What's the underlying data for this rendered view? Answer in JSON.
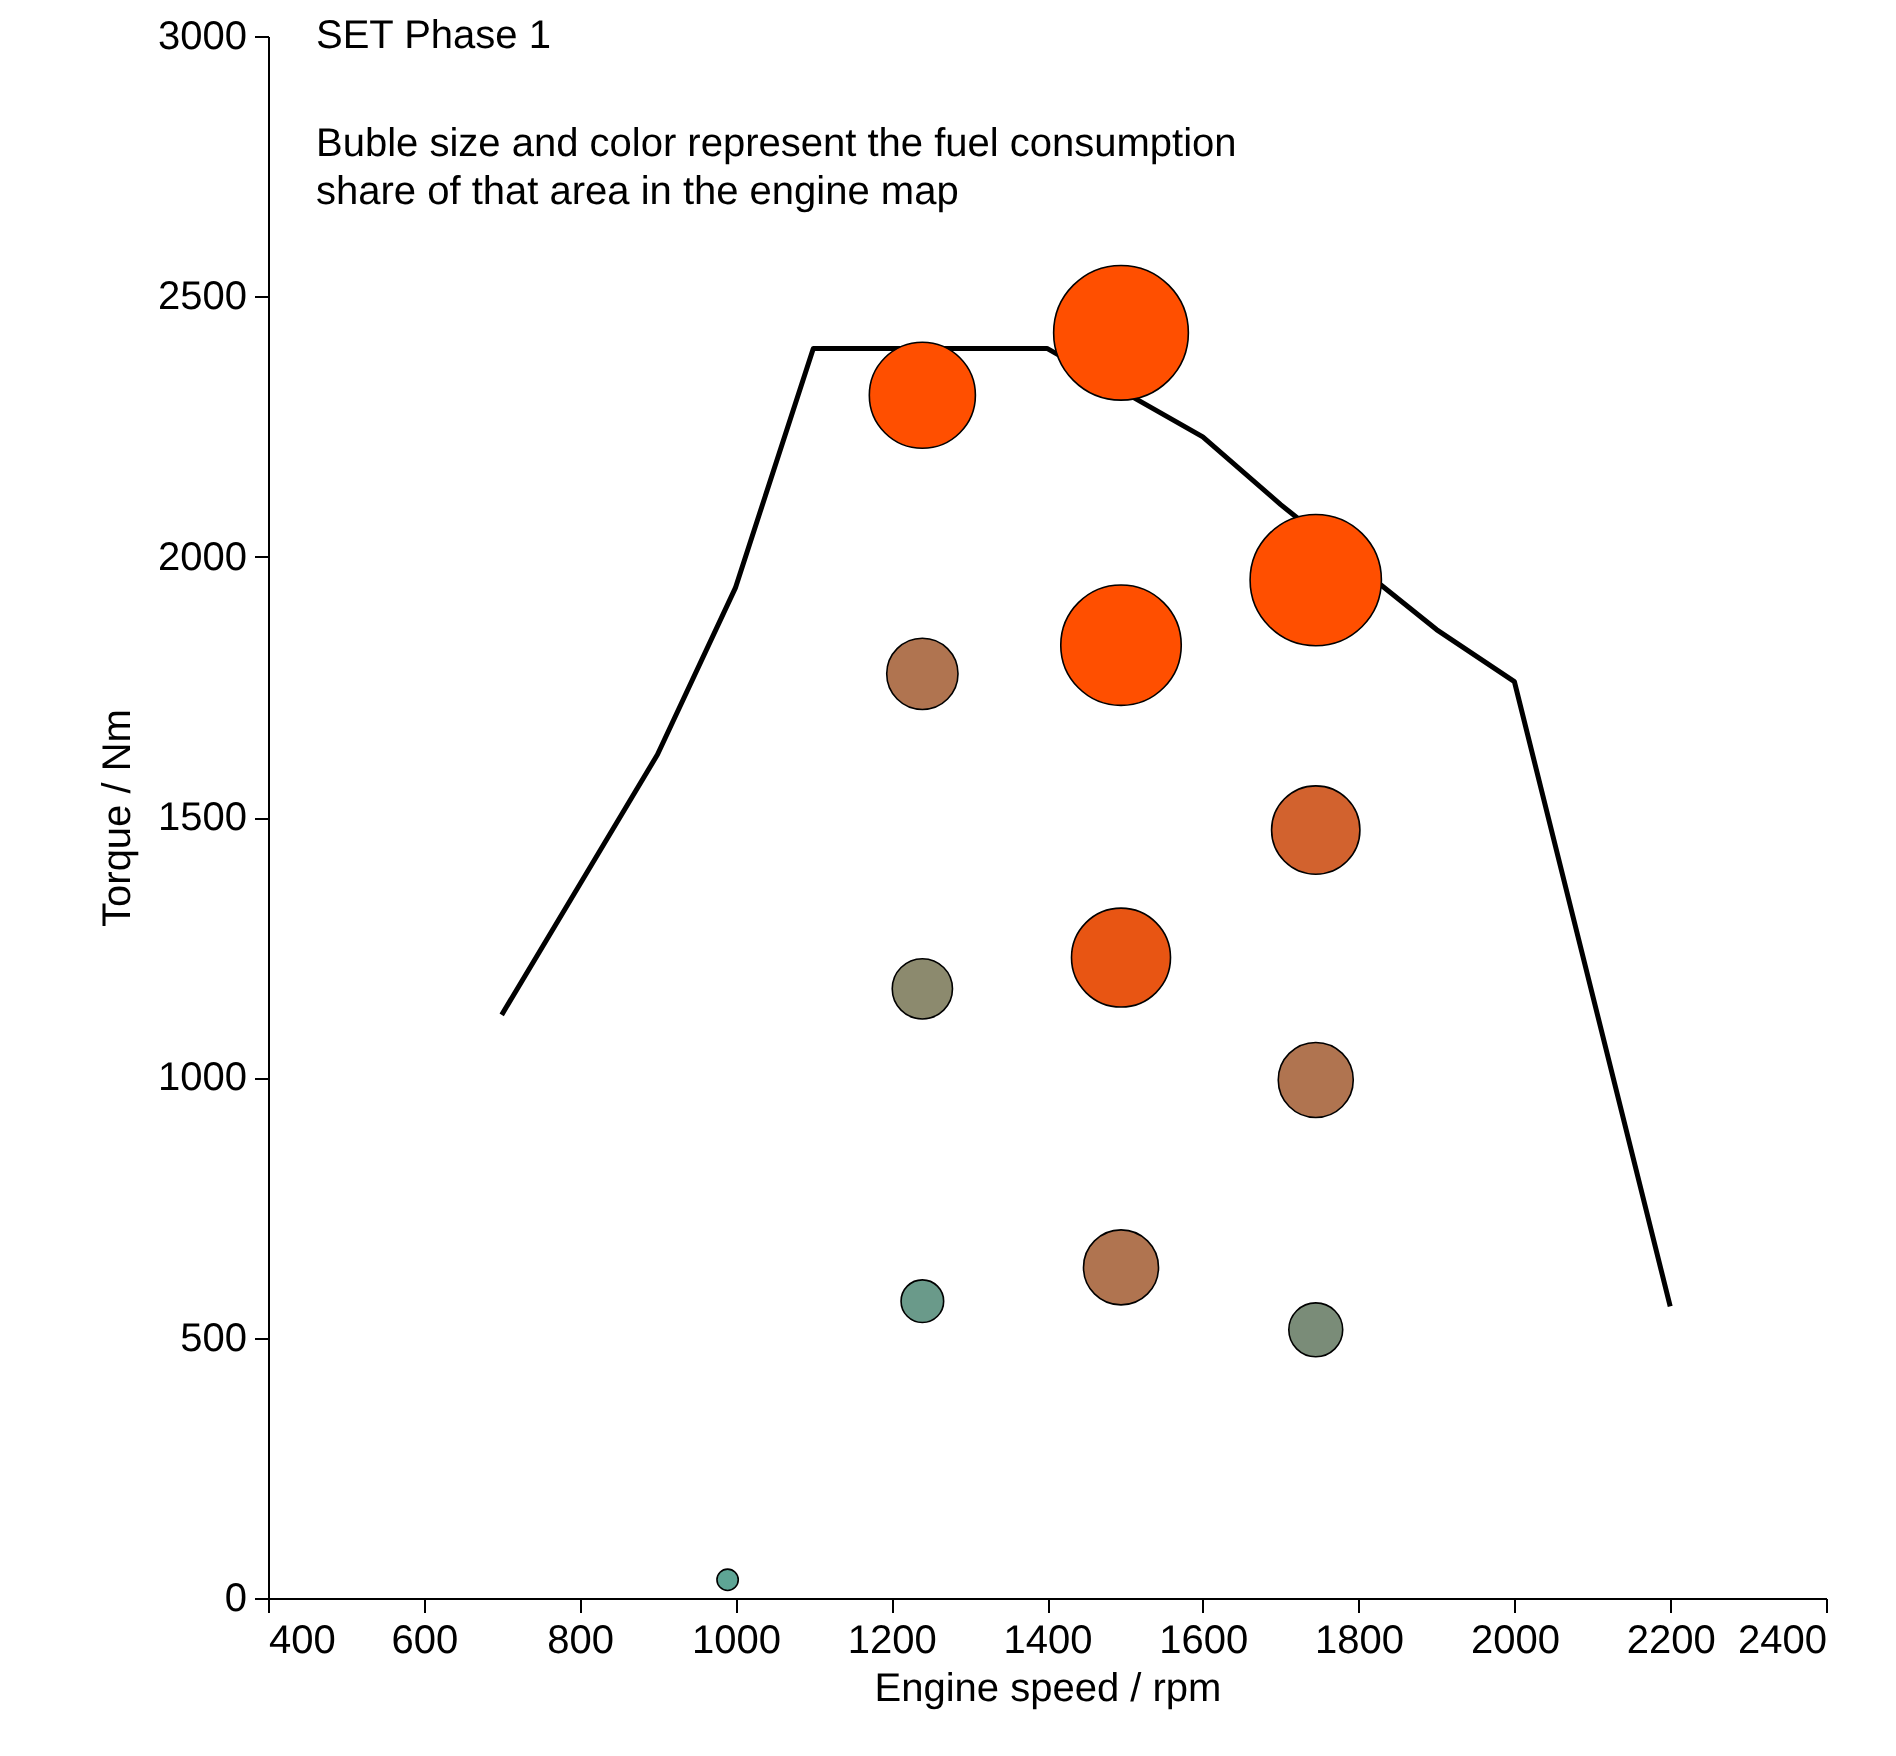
{
  "chart_data": {
    "type": "bubble",
    "xlabel": "Engine speed / rpm",
    "ylabel": "Torque / Nm",
    "xlim": [
      400,
      2400
    ],
    "xticks": [
      400,
      600,
      800,
      1000,
      1200,
      1400,
      1600,
      1800,
      2000,
      2200,
      2400
    ],
    "ylim": [
      0,
      3000
    ],
    "yticks": [
      0,
      500,
      1000,
      1500,
      2000,
      2500,
      3000
    ],
    "annotations": [
      "SET Phase 1",
      "Buble size and color represent the fuel consumption",
      "share of that area in the engine map"
    ],
    "series": [
      {
        "type": "line",
        "color": "#000000",
        "x": [
          700,
          800,
          900,
          1000,
          1100,
          1400,
          1600,
          1700,
          1900,
          2000,
          2200
        ],
        "values": [
          1120,
          1370,
          1620,
          1940,
          2400,
          2400,
          2230,
          2100,
          1860,
          1760,
          560
        ]
      },
      {
        "x": [
          990,
          1240,
          1240,
          1240,
          1240,
          1495,
          1495,
          1495,
          1495,
          1745,
          1745,
          1745,
          1745
        ],
        "values": [
          35,
          2310,
          1775,
          1170,
          570,
          2430,
          1830,
          1230,
          635,
          1955,
          1475,
          995,
          515
        ],
        "sizes": [
          0.025,
          0.62,
          0.28,
          0.2,
          0.1,
          1,
          0.8,
          0.54,
          0.31,
          0.95,
          0.43,
          0.31,
          0.16
        ],
        "colors": [
          "#5ea595",
          "#ff4f00",
          "#b07450",
          "#8c8a6e",
          "#6a9a8a",
          "#ff4f00",
          "#ff4f00",
          "#e85513",
          "#b07450",
          "#ff4f00",
          "#d2622e",
          "#b07450",
          "#7a8c78"
        ]
      }
    ]
  }
}
